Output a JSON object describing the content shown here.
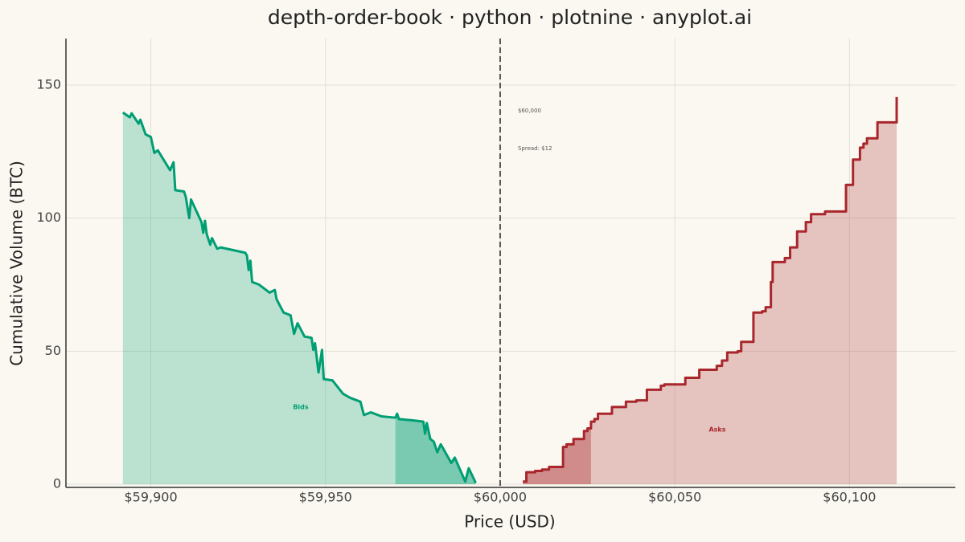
{
  "chart_data": {
    "type": "depth",
    "title": "depth-order-book · python · plotnine · anyplot.ai",
    "x_label": "Price (USD)",
    "y_label": "Cumulative Volume (BTC)",
    "xlim": [
      59875.7,
      60130.3
    ],
    "ylim": [
      -1.2,
      167.5
    ],
    "xticks": [
      {
        "value": 59900,
        "label": "$59,900"
      },
      {
        "value": 59950,
        "label": "$59,950"
      },
      {
        "value": 60000,
        "label": "$60,000"
      },
      {
        "value": 60050,
        "label": "$60,050"
      },
      {
        "value": 60100,
        "label": "$60,100"
      }
    ],
    "yticks": [
      0,
      50,
      100,
      150
    ],
    "grid": true,
    "mid_price": 60000,
    "depth_window": [
      59970,
      60026
    ],
    "annotations": [
      "$60,000",
      "Spread: $12"
    ],
    "series": [
      {
        "name": "Bids",
        "color": "#009e73",
        "step": false,
        "x": [
          59892,
          59894,
          59894.5,
          59896.5,
          59897,
          59898.5,
          59900,
          59901,
          59902,
          59905.5,
          59906.5,
          59907,
          59909.5,
          59910,
          59911,
          59911.5,
          59914.5,
          59915,
          59915.5,
          59916,
          59917,
          59917.5,
          59919,
          59920,
          59927,
          59927.5,
          59928,
          59928.5,
          59929,
          59931,
          59934,
          59935.5,
          59936,
          59938,
          59940,
          59941,
          59942,
          59944,
          59946,
          59946.5,
          59947,
          59948,
          59949,
          59949.5,
          59952,
          59955,
          59957,
          59960,
          59961,
          59963,
          59966,
          59970,
          59970.5,
          59971,
          59975,
          59978,
          59978.5,
          59979,
          59980,
          59981,
          59982,
          59983,
          59986,
          59987,
          59990,
          59991,
          59993
        ],
        "values": [
          139.7,
          137.9,
          139.4,
          135.5,
          137,
          131.5,
          130.5,
          124.5,
          125.5,
          118,
          121,
          110.5,
          110,
          108,
          100,
          107,
          98.5,
          94.5,
          99,
          94,
          90,
          92.5,
          88.5,
          89,
          87,
          86,
          80.5,
          84,
          76,
          75,
          72,
          73,
          69.5,
          64.5,
          63.5,
          56.5,
          60.5,
          55.5,
          55,
          50.5,
          53,
          42,
          50.5,
          39.5,
          39,
          34,
          32.5,
          31,
          26,
          27,
          25.5,
          25,
          26.5,
          24.5,
          24,
          23.5,
          19,
          23,
          17,
          16,
          12,
          15,
          8,
          10,
          1,
          6,
          0.5
        ]
      },
      {
        "name": "Asks",
        "color": "#a8262c",
        "step": true,
        "x": [
          60006.5,
          60007.5,
          60010,
          60012,
          60014,
          60018,
          60019,
          60021,
          60024,
          60025,
          60026,
          60027,
          60028,
          60032,
          60036,
          60039,
          60042,
          60046,
          60047,
          60053,
          60057,
          60062,
          60063.5,
          60065,
          60068,
          60069,
          60072.5,
          60075,
          60076,
          60077.5,
          60078,
          60081.5,
          60083,
          60085,
          60087.5,
          60089,
          60093,
          60099,
          60101,
          60103,
          60104,
          60105,
          60108,
          60111,
          60113.5
        ],
        "values": [
          1,
          4.5,
          5,
          5.5,
          6.5,
          14,
          15,
          17,
          20,
          21,
          23.5,
          24.5,
          26.5,
          29,
          31,
          31.5,
          35.5,
          37,
          37.5,
          40,
          43,
          44.5,
          46.5,
          49.5,
          50,
          53.5,
          64.5,
          65,
          66.5,
          76,
          83.5,
          85,
          89,
          95,
          98.5,
          101.5,
          102.5,
          112.5,
          122,
          126.5,
          128,
          130,
          136,
          136,
          145.5
        ]
      }
    ]
  }
}
